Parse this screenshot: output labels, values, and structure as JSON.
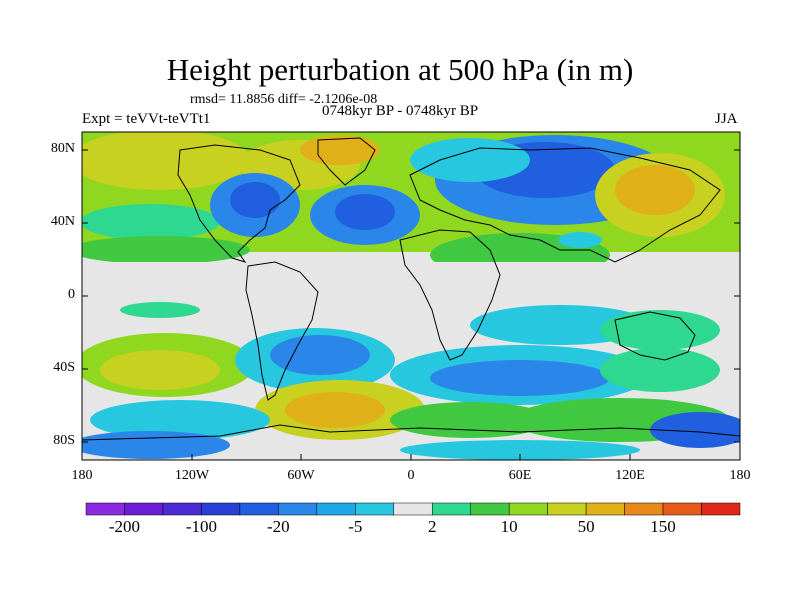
{
  "title": "Height perturbation at 500 hPa (in m)",
  "stats_text": "rmsd= 11.8856 diff= -2.1206e-08",
  "expt_text": "Expt = teVVt-teVTt1",
  "period_text": "0748kyr BP - 0748kyr BP",
  "season_text": "JJA",
  "lat_labels": [
    "80N",
    "40N",
    "0",
    "40S",
    "80S"
  ],
  "lon_labels": [
    "180",
    "120W",
    "60W",
    "0",
    "60E",
    "120E",
    "180"
  ],
  "colorbar": {
    "labels": [
      "-200",
      "-100",
      "-20",
      "-5",
      "2",
      "10",
      "50",
      "150"
    ],
    "colors": [
      "#8a2be2",
      "#6a1fd6",
      "#4a2bd6",
      "#2a3fd6",
      "#1f5fe0",
      "#2a86e8",
      "#1fa8e8",
      "#27c7e0",
      "#e6e6e6",
      "#2fd890",
      "#40c840",
      "#90d820",
      "#c8d020",
      "#e0b018",
      "#e88818",
      "#e85a18",
      "#e02818"
    ]
  },
  "map_colors": {
    "land_outline": "#000000",
    "neutral": "#e6e6e6",
    "blue_strong": "#1f5fe0",
    "blue_mid": "#2a86e8",
    "cyan": "#27c7e0",
    "teal": "#2fd890",
    "green": "#40c840",
    "yellow_green": "#90d820",
    "olive": "#c8d020",
    "orange": "#e0b018"
  }
}
